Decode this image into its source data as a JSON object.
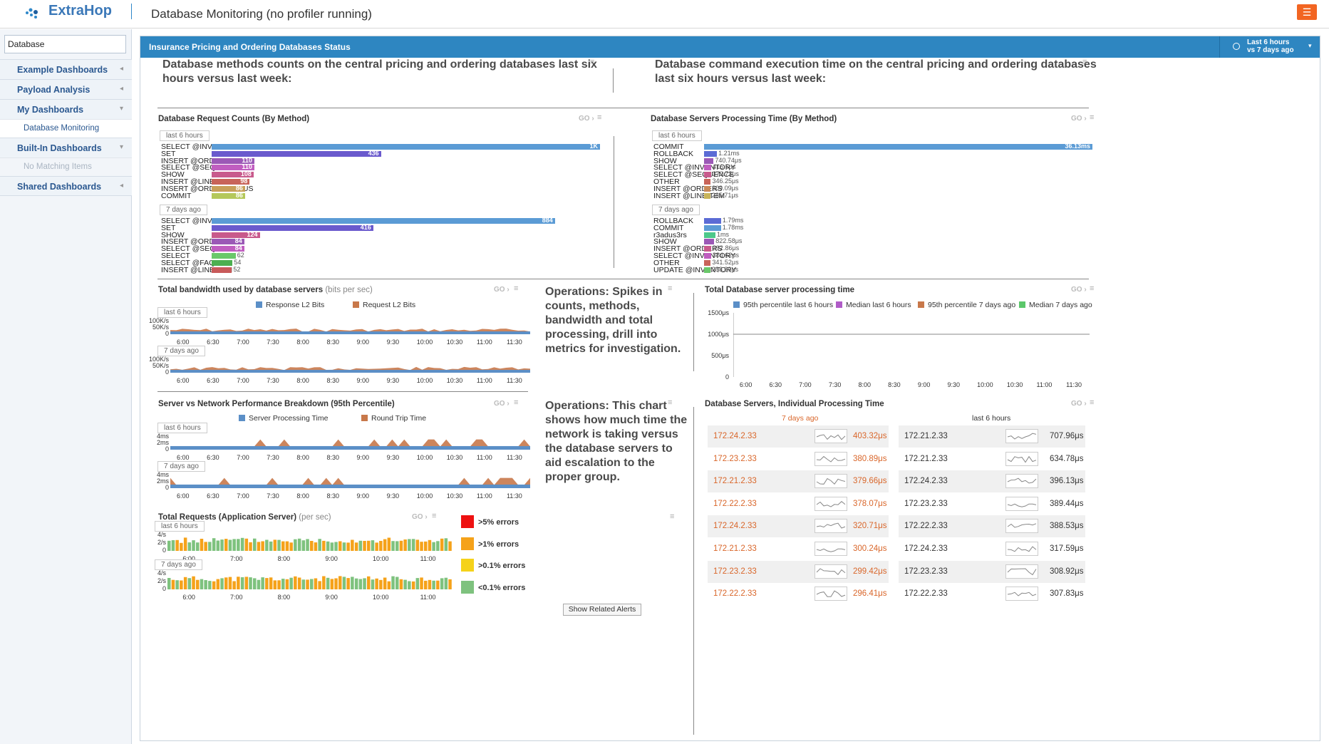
{
  "app": {
    "logo": "ExtraHop",
    "title": "Database Monitoring (no profiler running)",
    "menu_icon": "hamburger-icon",
    "accent": "#f26522"
  },
  "sidebar": {
    "search": {
      "value": "Database"
    },
    "items": [
      {
        "label": "Example Dashboards",
        "arrow": "◂"
      },
      {
        "label": "Payload Analysis",
        "arrow": "◂"
      },
      {
        "label": "My Dashboards",
        "arrow": "▾"
      },
      {
        "label": "Database Monitoring"
      },
      {
        "label": "Built-In Dashboards",
        "arrow": "▾"
      },
      {
        "label": "No Matching Items"
      },
      {
        "label": "Shared Dashboards",
        "arrow": "◂"
      }
    ]
  },
  "panel": {
    "title": "Insurance Pricing and Ordering Databases Status",
    "time_line1": "Last 6 hours",
    "time_line2": "vs 7 days ago",
    "color": "#2e86c1"
  },
  "text": {
    "left_heading": "Database methods counts on the central pricing and ordering databases last six hours versus last week:",
    "right_heading": "Database command execution time on the central pricing and ordering databases last six hours versus last week:",
    "ops1": "Operations: Spikes in counts, methods, bandwidth and total processing, drill into metrics for investigation.",
    "ops2": "Operations: This chart shows how much time the network is taking versus the database servers to aid escalation to the proper group."
  },
  "common": {
    "go": "GO ›",
    "last6": "last 6 hours",
    "days7": "7 days ago",
    "menu": "≡"
  },
  "chart_data": [
    {
      "type": "bar",
      "title": "Database Request Counts (By Method)",
      "groups": [
        {
          "label": "last 6 hours",
          "categories": [
            "SELECT @INVENTORY",
            "SET",
            "INSERT @ORDERS",
            "SELECT @SEQUENCE",
            "SHOW",
            "INSERT @LINEITEM",
            "INSERT @ORDERSTATUS",
            "COMMIT"
          ],
          "values": [
            1000,
            436,
            110,
            110,
            108,
            98,
            86,
            86
          ],
          "labels": [
            "1K",
            "436",
            "110",
            "110",
            "108",
            "98",
            "86",
            "86"
          ],
          "colors": [
            "#5b9bd5",
            "#6a5acd",
            "#9b59b6",
            "#c05ec0",
            "#c85a8c",
            "#c8645a",
            "#c8a05a",
            "#b4c85a"
          ]
        },
        {
          "label": "7 days ago",
          "categories": [
            "SELECT @INVENTORY",
            "SET",
            "SHOW",
            "INSERT @ORDERS",
            "SELECT @SEQUENCE",
            "SELECT",
            "SELECT @FAQ",
            "INSERT @LINEITEM"
          ],
          "values": [
            884,
            416,
            124,
            84,
            84,
            62,
            54,
            52
          ],
          "labels": [
            "884",
            "416",
            "124",
            "84",
            "84",
            "62",
            "54",
            "52"
          ],
          "colors": [
            "#5b9bd5",
            "#6a5acd",
            "#c85a8c",
            "#9b59b6",
            "#c05ec0",
            "#6ac86a",
            "#4caf50",
            "#c85a5a"
          ]
        }
      ]
    },
    {
      "type": "bar",
      "title": "Database Servers Processing Time (By Method)",
      "groups": [
        {
          "label": "last 6 hours",
          "categories": [
            "COMMIT",
            "ROLLBACK",
            "SHOW",
            "SELECT @INVENTORY",
            "SELECT @SEQUENCE",
            "OTHER",
            "INSERT @ORDERS",
            "INSERT @LINEITEM"
          ],
          "values": [
            36.13,
            1.21,
            0.74074,
            0.4165,
            0.37273,
            0.34625,
            0.30909,
            0.28571
          ],
          "labels": [
            "36.13ms",
            "1.21ms",
            "740.74μs",
            "416.5μs",
            "372.73μs",
            "346.25μs",
            "309.09μs",
            "285.71μs"
          ],
          "colors": [
            "#5b9bd5",
            "#5b6bd5",
            "#9b59b6",
            "#c05ec0",
            "#c85a8c",
            "#c8645a",
            "#c88a5a",
            "#c8b45a"
          ]
        },
        {
          "label": "7 days ago",
          "categories": [
            "ROLLBACK",
            "COMMIT",
            "r3adus3rs",
            "SHOW",
            "INSERT @ORDERS",
            "SELECT @INVENTORY",
            "OTHER",
            "UPDATE @INVENTORY"
          ],
          "values": [
            1.79,
            1.78,
            1,
            0.82258,
            0.39286,
            0.38462,
            0.34152,
            0.28889
          ],
          "labels": [
            "1.79ms",
            "1.78ms",
            "1ms",
            "822.58μs",
            "392.86μs",
            "384.62μs",
            "341.52μs",
            "288.89μs"
          ],
          "colors": [
            "#5b6bd5",
            "#5b9bd5",
            "#4cc88a",
            "#9b59b6",
            "#c85a8c",
            "#c05ec0",
            "#c8645a",
            "#6ac86a"
          ]
        }
      ]
    },
    {
      "type": "area",
      "title": "Total bandwidth used by database servers",
      "subtitle": "(bits per sec)",
      "series": [
        {
          "name": "Response L2 Bits",
          "color": "#5b8fc7"
        },
        {
          "name": "Request L2 Bits",
          "color": "#c8784a"
        }
      ],
      "yticks": [
        "100K/s",
        "50K/s",
        "0"
      ],
      "xticks": [
        "6:00",
        "6:30",
        "7:00",
        "7:30",
        "8:00",
        "8:30",
        "9:00",
        "9:30",
        "10:00",
        "10:30",
        "11:00",
        "11:30"
      ]
    },
    {
      "type": "line",
      "title": "Total Database server processing time",
      "series": [
        {
          "name": "95th percentile last 6 hours",
          "color": "#5b8fc7"
        },
        {
          "name": "Median last 6 hours",
          "color": "#b05bc7"
        },
        {
          "name": "95th percentile 7 days ago",
          "color": "#c8784a"
        },
        {
          "name": "Median 7 days ago",
          "color": "#5bc76a"
        }
      ],
      "yticks": [
        "1500μs",
        "1000μs",
        "500μs",
        "0"
      ],
      "xticks": [
        "6:00",
        "6:30",
        "7:00",
        "7:30",
        "8:00",
        "8:30",
        "9:00",
        "9:30",
        "10:00",
        "10:30",
        "11:00",
        "11:30"
      ]
    },
    {
      "type": "area",
      "title": "Server vs Network Performance Breakdown (95th Percentile)",
      "series": [
        {
          "name": "Server Processing Time",
          "color": "#5b8fc7"
        },
        {
          "name": "Round Trip Time",
          "color": "#c8784a"
        }
      ],
      "yticks": [
        "4ms",
        "2ms",
        "0"
      ],
      "xticks": [
        "6:00",
        "6:30",
        "7:00",
        "7:30",
        "8:00",
        "8:30",
        "9:00",
        "9:30",
        "10:00",
        "10:30",
        "11:00",
        "11:30"
      ]
    },
    {
      "type": "bar",
      "title": "Total Requests (Application Server)",
      "subtitle": "(per sec)",
      "yticks": [
        "4/s",
        "2/s",
        "0"
      ],
      "xticks": [
        "6:00",
        "7:00",
        "8:00",
        "9:00",
        "10:00",
        "11:00"
      ],
      "legend": [
        {
          "name": ">5% errors",
          "color": "#ee1111"
        },
        {
          "name": ">1% errors",
          "color": "#f5a21a"
        },
        {
          "name": ">0.1% errors",
          "color": "#f5d21a"
        },
        {
          "name": "<0.1% errors",
          "color": "#7ec27e"
        }
      ]
    },
    {
      "type": "table",
      "title": "Database Servers, Individual Processing Time",
      "columns": [
        "7 days ago",
        "last 6 hours"
      ],
      "left": [
        [
          "172.24.2.33",
          "403.32μs"
        ],
        [
          "172.23.2.33",
          "380.89μs"
        ],
        [
          "172.21.2.33",
          "379.66μs"
        ],
        [
          "172.22.2.33",
          "378.07μs"
        ],
        [
          "172.24.2.33",
          "320.71μs"
        ],
        [
          "172.21.2.33",
          "300.24μs"
        ],
        [
          "172.23.2.33",
          "299.42μs"
        ],
        [
          "172.22.2.33",
          "296.41μs"
        ]
      ],
      "right": [
        [
          "172.21.2.33",
          "707.96μs"
        ],
        [
          "172.21.2.33",
          "634.78μs"
        ],
        [
          "172.24.2.33",
          "396.13μs"
        ],
        [
          "172.23.2.33",
          "389.44μs"
        ],
        [
          "172.22.2.33",
          "388.53μs"
        ],
        [
          "172.24.2.33",
          "317.59μs"
        ],
        [
          "172.23.2.33",
          "308.92μs"
        ],
        [
          "172.22.2.33",
          "307.83μs"
        ]
      ]
    }
  ],
  "buttons": {
    "related_alerts": "Show Related Alerts"
  }
}
